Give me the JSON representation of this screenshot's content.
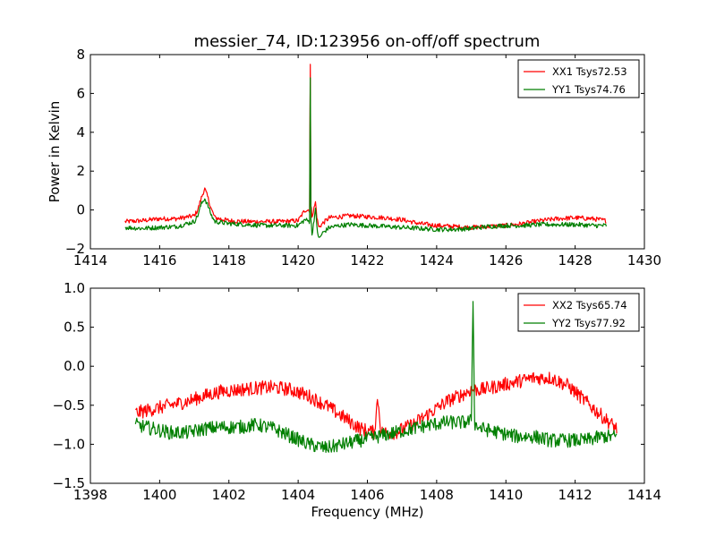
{
  "figure": {
    "title": "messier_74, ID:123956 on-off/off spectrum"
  },
  "colors": {
    "xx": "#ff0000",
    "yy": "#007f00",
    "axis": "#000000",
    "background": "#ffffff"
  },
  "chart_data": [
    {
      "type": "line",
      "title": "messier_74, ID:123956 on-off/off spectrum",
      "xlabel": "",
      "ylabel": "Power in Kelvin",
      "xlim": [
        1414,
        1430
      ],
      "ylim": [
        -2,
        8
      ],
      "xticks": [
        "1414",
        "1416",
        "1418",
        "1420",
        "1422",
        "1424",
        "1426",
        "1428",
        "1430"
      ],
      "yticks": [
        "−2",
        "0",
        "2",
        "4",
        "6",
        "8"
      ],
      "grid": false,
      "legend_position": "top-right",
      "series": [
        {
          "name": "XX1 Tsys72.53",
          "color": "#ff0000",
          "x": [
            1415.0,
            1415.5,
            1416.0,
            1416.5,
            1417.0,
            1417.1,
            1417.2,
            1417.3,
            1417.4,
            1417.5,
            1417.6,
            1418.0,
            1418.5,
            1419.0,
            1419.5,
            1420.0,
            1420.2,
            1420.33,
            1420.35,
            1420.37,
            1420.4,
            1420.45,
            1420.5,
            1420.55,
            1420.6,
            1420.7,
            1420.9,
            1421.2,
            1421.5,
            1422.0,
            1422.5,
            1423.0,
            1423.5,
            1424.0,
            1424.5,
            1425.0,
            1425.5,
            1426.0,
            1426.5,
            1427.0,
            1427.5,
            1428.0,
            1428.5,
            1428.9
          ],
          "y": [
            -0.6,
            -0.55,
            -0.45,
            -0.45,
            -0.3,
            0.0,
            0.6,
            1.1,
            0.6,
            0.0,
            -0.4,
            -0.55,
            -0.6,
            -0.6,
            -0.6,
            -0.55,
            0.0,
            0.0,
            7.5,
            0.2,
            -0.3,
            0.0,
            0.4,
            -0.5,
            -0.9,
            -0.7,
            -0.4,
            -0.35,
            -0.3,
            -0.35,
            -0.4,
            -0.5,
            -0.7,
            -0.8,
            -0.85,
            -0.9,
            -0.85,
            -0.8,
            -0.7,
            -0.55,
            -0.45,
            -0.4,
            -0.45,
            -0.55
          ]
        },
        {
          "name": "YY1 Tsys74.76",
          "color": "#007f00",
          "x": [
            1415.0,
            1415.5,
            1416.0,
            1416.5,
            1417.0,
            1417.1,
            1417.2,
            1417.3,
            1417.4,
            1417.5,
            1417.6,
            1418.0,
            1418.5,
            1419.0,
            1419.5,
            1420.0,
            1420.2,
            1420.33,
            1420.35,
            1420.37,
            1420.4,
            1420.45,
            1420.5,
            1420.55,
            1420.6,
            1420.7,
            1420.9,
            1421.2,
            1421.5,
            1422.0,
            1422.5,
            1423.0,
            1423.5,
            1424.0,
            1424.5,
            1425.0,
            1425.5,
            1426.0,
            1426.5,
            1427.0,
            1427.5,
            1428.0,
            1428.5,
            1428.9
          ],
          "y": [
            -0.9,
            -0.95,
            -0.9,
            -0.85,
            -0.6,
            -0.3,
            0.3,
            0.6,
            0.2,
            -0.3,
            -0.6,
            -0.7,
            -0.75,
            -0.8,
            -0.8,
            -0.8,
            -0.5,
            -0.6,
            6.8,
            -0.5,
            -1.3,
            -0.6,
            0.0,
            -1.0,
            -1.5,
            -1.2,
            -0.9,
            -0.8,
            -0.75,
            -0.8,
            -0.85,
            -0.9,
            -0.95,
            -1.0,
            -1.0,
            -0.95,
            -0.85,
            -0.8,
            -0.8,
            -0.75,
            -0.75,
            -0.75,
            -0.8,
            -0.8
          ]
        }
      ]
    },
    {
      "type": "line",
      "title": "",
      "xlabel": "Frequency (MHz)",
      "ylabel": "",
      "xlim": [
        1398,
        1414
      ],
      "ylim": [
        -1.5,
        1.0
      ],
      "xticks": [
        "1398",
        "1400",
        "1402",
        "1404",
        "1406",
        "1408",
        "1410",
        "1412",
        "1414"
      ],
      "yticks": [
        "−1.5",
        "−1.0",
        "−0.5",
        "0.0",
        "0.5",
        "1.0"
      ],
      "grid": false,
      "legend_position": "top-right",
      "series": [
        {
          "name": "XX2 Tsys65.74",
          "color": "#ff0000",
          "x": [
            1399.3,
            1399.8,
            1400.3,
            1400.8,
            1401.3,
            1401.8,
            1402.3,
            1402.8,
            1403.3,
            1403.8,
            1404.3,
            1404.8,
            1405.3,
            1405.8,
            1406.2,
            1406.3,
            1406.4,
            1406.8,
            1407.3,
            1407.8,
            1408.3,
            1408.8,
            1409.0,
            1409.3,
            1409.8,
            1410.3,
            1410.8,
            1411.3,
            1411.8,
            1412.3,
            1412.8,
            1413.2
          ],
          "y": [
            -0.6,
            -0.55,
            -0.5,
            -0.45,
            -0.38,
            -0.32,
            -0.3,
            -0.28,
            -0.27,
            -0.3,
            -0.38,
            -0.5,
            -0.65,
            -0.8,
            -0.85,
            -0.4,
            -0.85,
            -0.85,
            -0.75,
            -0.6,
            -0.45,
            -0.35,
            -0.3,
            -0.3,
            -0.25,
            -0.2,
            -0.15,
            -0.15,
            -0.25,
            -0.45,
            -0.65,
            -0.8
          ]
        },
        {
          "name": "YY2 Tsys77.92",
          "color": "#007f00",
          "x": [
            1399.3,
            1399.8,
            1400.3,
            1400.8,
            1401.3,
            1401.8,
            1402.3,
            1402.8,
            1403.3,
            1403.8,
            1404.3,
            1404.8,
            1405.3,
            1405.8,
            1406.3,
            1406.8,
            1407.3,
            1407.8,
            1408.3,
            1408.8,
            1409.0,
            1409.05,
            1409.1,
            1409.3,
            1409.8,
            1410.3,
            1410.8,
            1411.3,
            1411.8,
            1412.3,
            1412.8,
            1413.2
          ],
          "y": [
            -0.75,
            -0.8,
            -0.85,
            -0.85,
            -0.8,
            -0.78,
            -0.78,
            -0.75,
            -0.8,
            -0.9,
            -1.0,
            -1.05,
            -1.0,
            -0.95,
            -0.9,
            -0.85,
            -0.8,
            -0.75,
            -0.72,
            -0.72,
            -0.7,
            0.83,
            -0.75,
            -0.8,
            -0.85,
            -0.9,
            -0.9,
            -0.95,
            -0.95,
            -0.95,
            -0.9,
            -0.9
          ]
        }
      ]
    }
  ]
}
